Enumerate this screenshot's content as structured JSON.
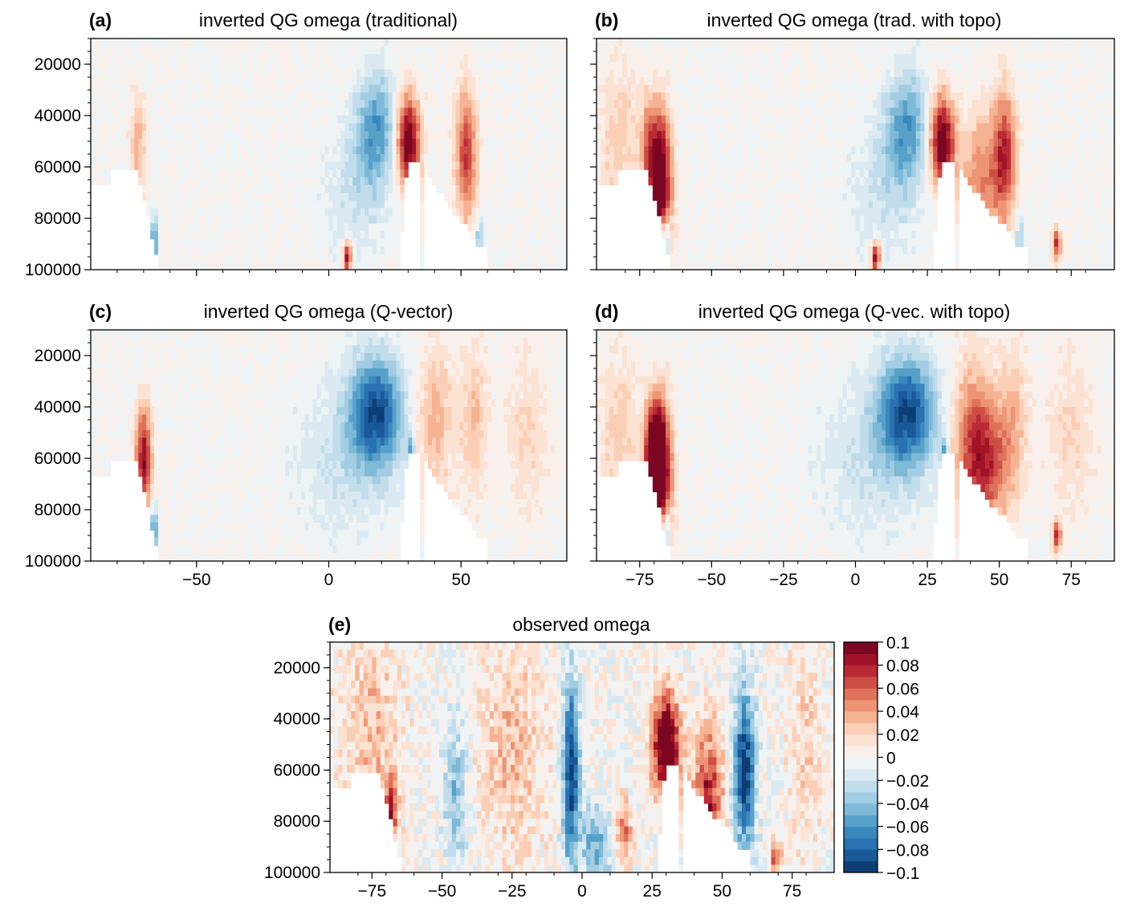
{
  "figure": {
    "colormap": "RdBu_r",
    "colormap_endpoints": {
      "negative": "#053061",
      "zero": "#f7f7f7",
      "positive": "#67001f"
    }
  },
  "chart_data": [
    {
      "type": "heatmap",
      "panel_label": "(a)",
      "title": "inverted QG omega (traditional)",
      "xlabel": "",
      "ylabel": "",
      "xlim": [
        -90,
        90
      ],
      "ylim": [
        100000,
        10000
      ],
      "x_tick_values": [
        -50,
        0,
        50
      ],
      "x_tick_labels_visible": false,
      "y_ticks": [
        20000,
        40000,
        60000,
        80000,
        100000
      ],
      "y_tick_labels": [
        "20000",
        "40000",
        "60000",
        "80000",
        "100000"
      ],
      "field": "traditional",
      "value_range": [
        -0.1,
        0.1
      ]
    },
    {
      "type": "heatmap",
      "panel_label": "(b)",
      "title": "inverted QG omega (trad. with topo)",
      "xlabel": "",
      "ylabel": "",
      "xlim": [
        -90,
        90
      ],
      "ylim": [
        100000,
        10000
      ],
      "x_tick_values": [
        -75,
        -50,
        -25,
        0,
        25,
        50,
        75
      ],
      "x_tick_labels_visible": false,
      "y_ticks": [
        20000,
        40000,
        60000,
        80000,
        100000
      ],
      "y_tick_labels_visible": false,
      "field": "trad_topo",
      "value_range": [
        -0.1,
        0.1
      ]
    },
    {
      "type": "heatmap",
      "panel_label": "(c)",
      "title": "inverted QG omega (Q-vector)",
      "xlabel": "",
      "ylabel": "",
      "xlim": [
        -90,
        90
      ],
      "ylim": [
        100000,
        10000
      ],
      "x_ticks": [
        -50,
        0,
        50
      ],
      "x_tick_labels": [
        "−50",
        "0",
        "50"
      ],
      "y_ticks": [
        20000,
        40000,
        60000,
        80000,
        100000
      ],
      "y_tick_labels": [
        "20000",
        "40000",
        "60000",
        "80000",
        "100000"
      ],
      "field": "qvector",
      "value_range": [
        -0.1,
        0.1
      ]
    },
    {
      "type": "heatmap",
      "panel_label": "(d)",
      "title": "inverted QG omega (Q-vec. with topo)",
      "xlabel": "",
      "ylabel": "",
      "xlim": [
        -90,
        90
      ],
      "ylim": [
        100000,
        10000
      ],
      "x_ticks": [
        -75,
        -50,
        -25,
        0,
        25,
        50,
        75
      ],
      "x_tick_labels": [
        "−75",
        "−50",
        "−25",
        "0",
        "25",
        "50",
        "75"
      ],
      "y_ticks": [
        20000,
        40000,
        60000,
        80000,
        100000
      ],
      "y_tick_labels_visible": false,
      "field": "qvec_topo",
      "value_range": [
        -0.1,
        0.1
      ]
    },
    {
      "type": "heatmap",
      "panel_label": "(e)",
      "title": "observed omega",
      "xlabel": "",
      "ylabel": "",
      "xlim": [
        -90,
        90
      ],
      "ylim": [
        100000,
        10000
      ],
      "x_ticks": [
        -75,
        -50,
        -25,
        0,
        25,
        50,
        75
      ],
      "x_tick_labels": [
        "−75",
        "−50",
        "−25",
        "0",
        "25",
        "50",
        "75"
      ],
      "y_ticks": [
        20000,
        40000,
        60000,
        80000,
        100000
      ],
      "y_tick_labels": [
        "20000",
        "40000",
        "60000",
        "80000",
        "100000"
      ],
      "field": "observed",
      "value_range": [
        -0.1,
        0.1
      ],
      "colorbar": {
        "levels": [
          -0.1,
          -0.09,
          -0.08,
          -0.07,
          -0.06,
          -0.05,
          -0.04,
          -0.03,
          -0.02,
          -0.01,
          0,
          0.01,
          0.02,
          0.03,
          0.04,
          0.05,
          0.06,
          0.07,
          0.08,
          0.09,
          0.1
        ],
        "tick_values": [
          0.1,
          0.08,
          0.06,
          0.04,
          0.02,
          0,
          -0.02,
          -0.04,
          -0.06,
          -0.08,
          -0.1
        ],
        "tick_labels": [
          "0.1",
          "0.08",
          "0.06",
          "0.04",
          "0.02",
          "0",
          "−0.02",
          "−0.04",
          "−0.06",
          "−0.08",
          "−0.1"
        ]
      }
    }
  ]
}
